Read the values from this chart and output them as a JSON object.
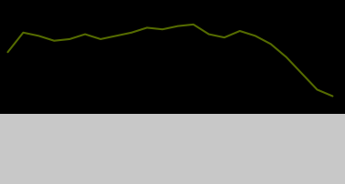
{
  "years": [
    1990,
    1991,
    1992,
    1993,
    1994,
    1995,
    1996,
    1997,
    1998,
    1999,
    2000,
    2001,
    2002,
    2003,
    2004,
    2005,
    2006,
    2007,
    2008,
    2009,
    2010,
    2011
  ],
  "values": [
    68,
    80,
    78,
    75,
    76,
    79,
    76,
    78,
    80,
    83,
    82,
    84,
    85,
    79,
    77,
    81,
    78,
    73,
    65,
    55,
    45,
    41
  ],
  "line_color": "#556b00",
  "background_color": "#000000",
  "label_bg_color": "#c8c8c8",
  "ylim": [
    30,
    100
  ],
  "xlim": [
    1989.5,
    2011.8
  ],
  "figsize": [
    3.78,
    2.02
  ],
  "dpi": 100
}
